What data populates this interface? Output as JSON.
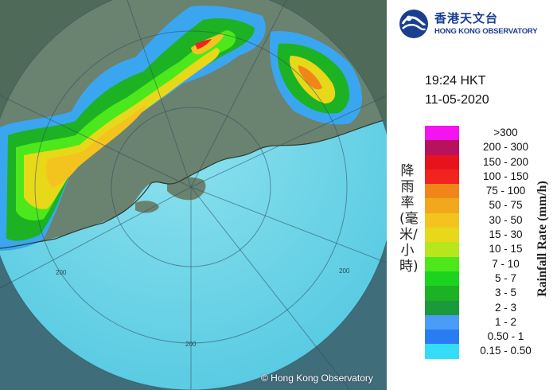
{
  "header": {
    "org_name_zh": "香港天文台",
    "org_name_en": "HONG KONG OBSERVATORY",
    "time": "19:24 HKT",
    "date": "11-05-2020"
  },
  "legend": {
    "title_zh": "降雨率(毫米/小時)",
    "title_en": "Rainfall Rate (mm/h)",
    "ranges": [
      {
        "label": ">300",
        "color": "#f414f0"
      },
      {
        "label": "200 - 300",
        "color": "#b8125e"
      },
      {
        "label": "150 - 200",
        "color": "#e8121c"
      },
      {
        "label": "100 - 150",
        "color": "#f2221e"
      },
      {
        "label": "75 - 100",
        "color": "#f0861a"
      },
      {
        "label": "50 - 75",
        "color": "#f2a81c"
      },
      {
        "label": "30 - 50",
        "color": "#f4c41e"
      },
      {
        "label": "15 - 30",
        "color": "#e8d81a"
      },
      {
        "label": "10 - 15",
        "color": "#b8e61c"
      },
      {
        "label": "7 - 10",
        "color": "#4ce81c"
      },
      {
        "label": "5 - 7",
        "color": "#1cd41e"
      },
      {
        "label": "3 - 5",
        "color": "#1cb224"
      },
      {
        "label": "2 - 3",
        "color": "#1a9a3a"
      },
      {
        "label": "1 - 2",
        "color": "#4a9cf8"
      },
      {
        "label": "0.50 - 1",
        "color": "#2a7cf2"
      },
      {
        "label": "0.15 - 0.50",
        "color": "#34dcf8"
      }
    ]
  },
  "map": {
    "range_ring_labels": [
      "200",
      "200",
      "200"
    ],
    "copyright": "© Hong Kong Observatory"
  },
  "icons": {
    "logo": "hko-logo-icon"
  }
}
